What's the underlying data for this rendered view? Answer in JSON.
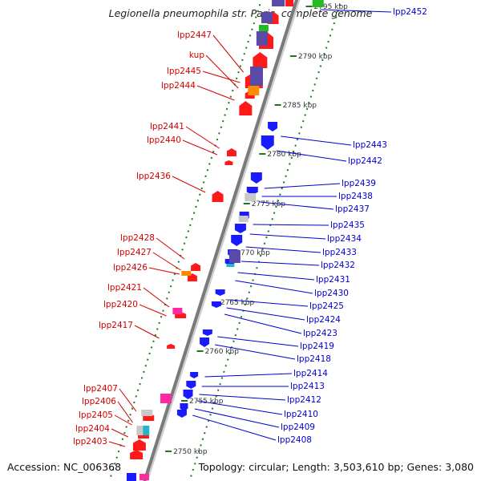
{
  "title": "Legionella pneumophila str. Paris, complete genome",
  "footer": {
    "accession": "Accession: NC_006368",
    "topology": "Topology: circular; Length: 3,503,610 bp; Genes: 3,080"
  },
  "colors": {
    "backbone": "#7a7a7a",
    "minus_strand_label": "#d40000",
    "plus_strand_label": "#0000cc",
    "tick": "#1a7a1a",
    "gene_red": "#ff1a1a",
    "gene_blue": "#1a1aff",
    "gene_purple": "#5a4aa8",
    "gene_orange": "#ff8c00",
    "gene_magenta": "#ff2aa0",
    "gene_gray": "#c8c8c8",
    "gene_cyan": "#20b8c8",
    "gene_green": "#22bb22"
  },
  "kbp_ticks": [
    "2795 kbp",
    "2790 kbp",
    "2785 kbp",
    "2780 kbp",
    "2775 kbp",
    "2770 kbp",
    "2765 kbp",
    "2760 kbp",
    "2755 kbp",
    "2750 kbp"
  ],
  "left_labels": [
    "lpp2447",
    "kup",
    "lpp2445",
    "lpp2444",
    "lpp2441",
    "lpp2440",
    "lpp2436",
    "lpp2428",
    "lpp2427",
    "lpp2426",
    "lpp2421",
    "lpp2420",
    "lpp2417",
    "lpp2407",
    "lpp2406",
    "lpp2405",
    "lpp2404",
    "lpp2403"
  ],
  "right_labels": [
    "lpp2452",
    "lpp2443",
    "lpp2442",
    "lpp2439",
    "lpp2438",
    "lpp2437",
    "lpp2435",
    "lpp2434",
    "lpp2433",
    "lpp2432",
    "lpp2431",
    "lpp2430",
    "lpp2425",
    "lpp2424",
    "lpp2423",
    "lpp2419",
    "lpp2418",
    "lpp2414",
    "lpp2413",
    "lpp2412",
    "lpp2410",
    "lpp2409",
    "lpp2408"
  ]
}
